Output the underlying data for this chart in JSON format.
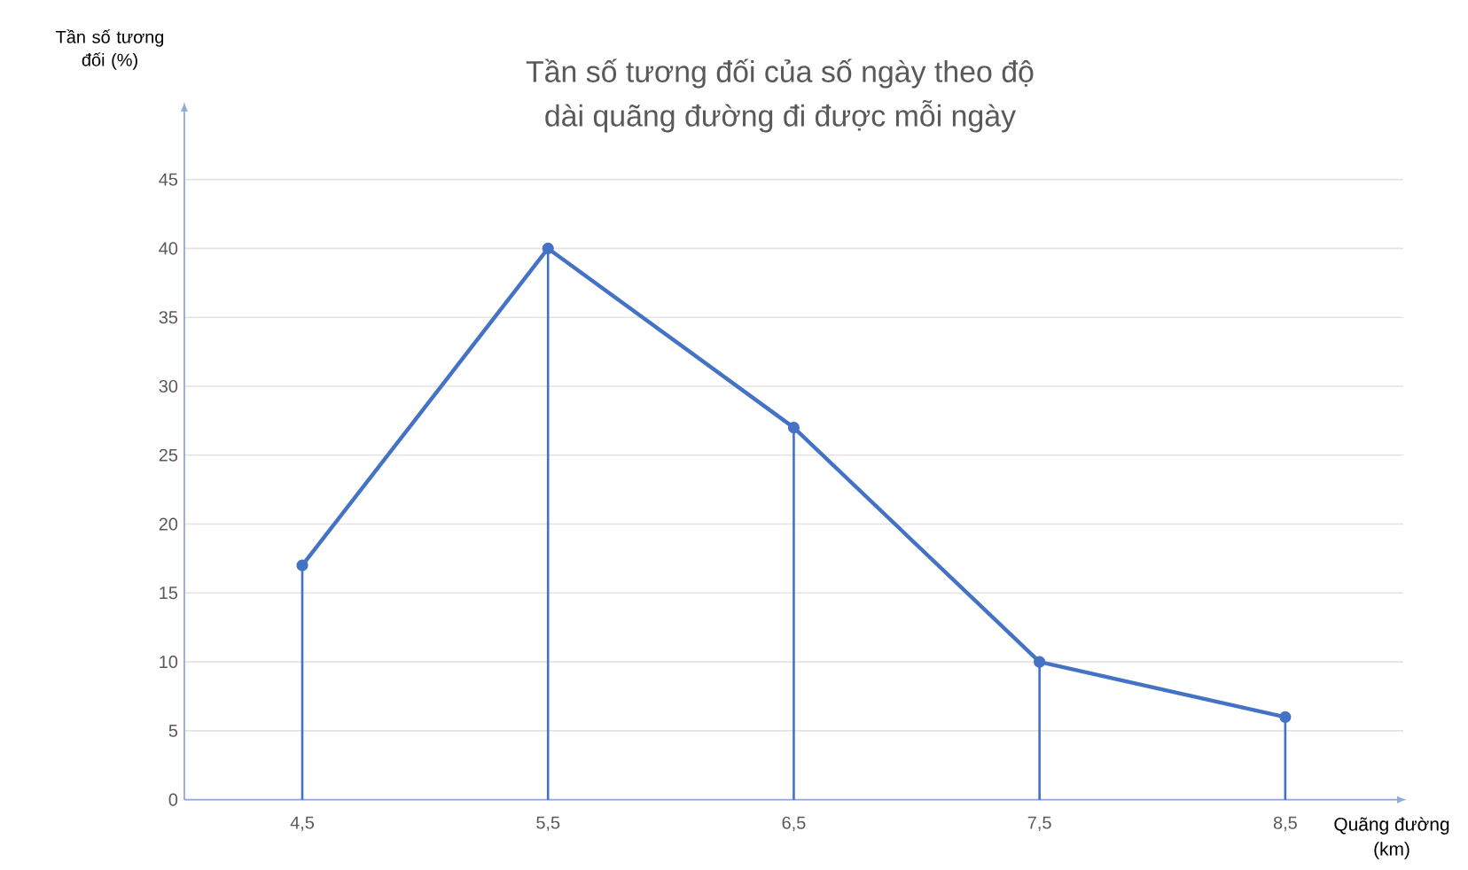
{
  "chart_data": {
    "type": "line",
    "title": "Tần số tương đối của số ngày theo độ dài quãng đường đi được mỗi ngày",
    "xlabel": "Quãng đường (km)",
    "ylabel": "Tần số tương đối (%)",
    "categories": [
      "4,5",
      "5,5",
      "6,5",
      "7,5",
      "8,5"
    ],
    "series": [
      {
        "type": "lollipop",
        "color": "#4472c4",
        "values": [
          17,
          40,
          27,
          10,
          6
        ]
      },
      {
        "color": "#4472c4",
        "values": [
          17,
          40,
          27,
          10,
          6
        ]
      }
    ],
    "marker": "circle",
    "ylim": [
      0,
      50
    ],
    "yticks": [
      0,
      5,
      10,
      15,
      20,
      25,
      30,
      35,
      40,
      45
    ],
    "grid": "y",
    "line_style": "solid"
  }
}
